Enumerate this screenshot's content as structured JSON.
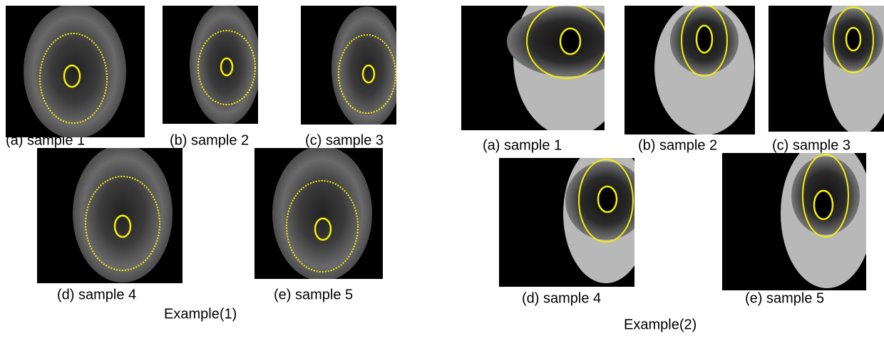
{
  "example_1": {
    "label": "Example(1)",
    "captions": [
      "(a) sample 1",
      "(b) sample 2",
      "(c) sample 3",
      "(d) sample 4",
      "(e) sample 5"
    ]
  },
  "example_2": {
    "label": "Example(2)",
    "captions": [
      "(a) sample 1",
      "(b) sample 2",
      "(c) sample 3",
      "(d) sample 4",
      "(e) sample 5"
    ]
  }
}
